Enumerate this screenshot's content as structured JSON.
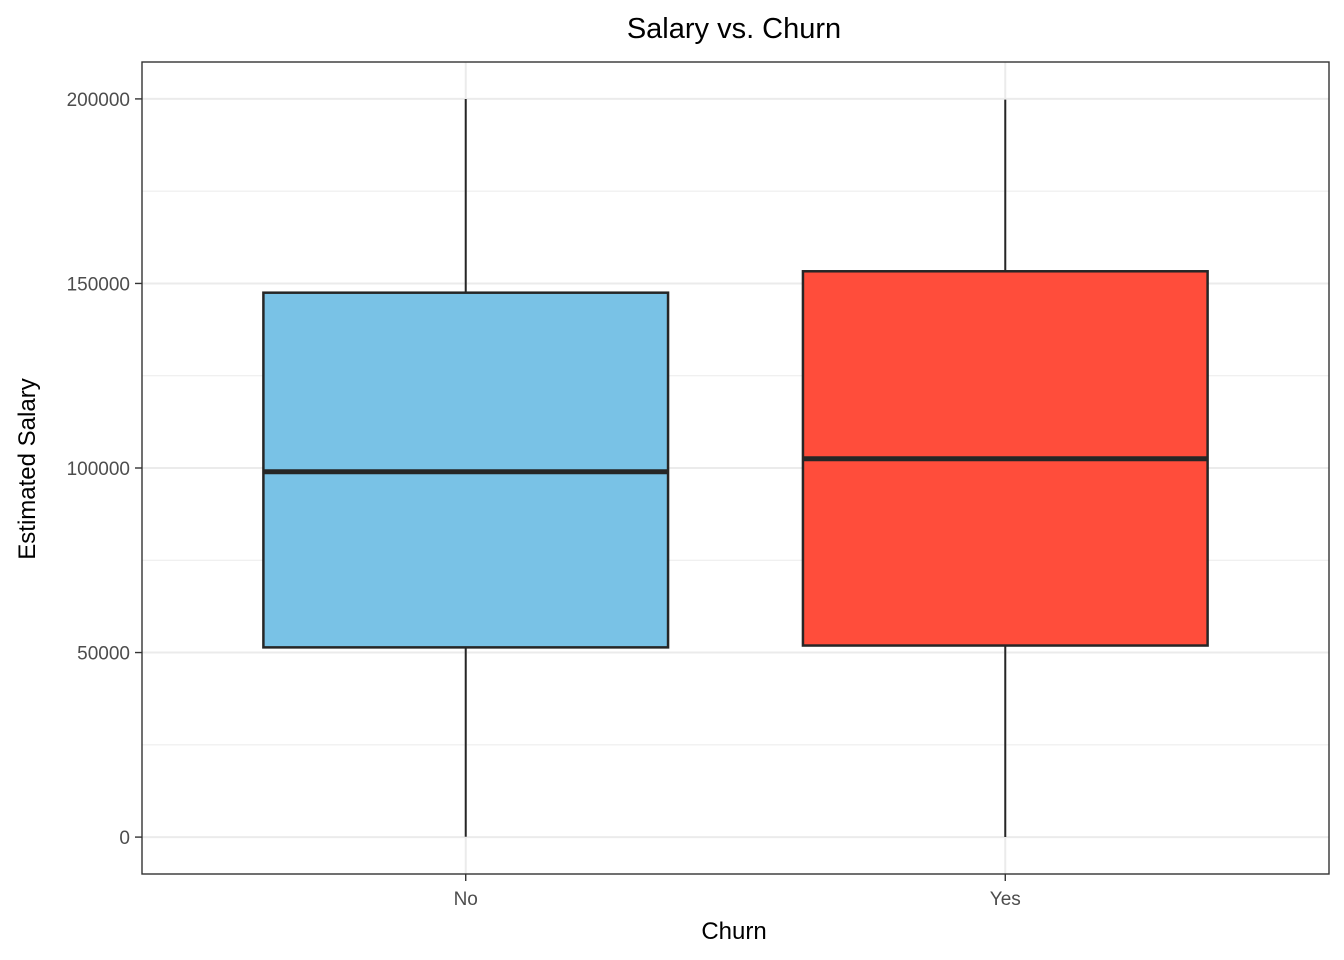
{
  "chart_data": {
    "type": "boxplot",
    "title": "Salary vs. Churn",
    "xlabel": "Churn",
    "ylabel": "Estimated Salary",
    "categories": [
      "No",
      "Yes"
    ],
    "boxes": [
      {
        "category": "No",
        "min": 90,
        "q1": 51400,
        "median": 99000,
        "q3": 147500,
        "max": 199990,
        "fill": "#79C2E6"
      },
      {
        "category": "Yes",
        "min": 11.6,
        "q1": 51900,
        "median": 102500,
        "q3": 153300,
        "max": 199800,
        "fill": "#FF4D3B"
      }
    ],
    "ylim": [
      -10000,
      210000
    ],
    "yticks": [
      0,
      50000,
      100000,
      150000,
      200000
    ],
    "ytick_labels": [
      "0",
      "50000",
      "100000",
      "150000",
      "200000"
    ],
    "grid": true,
    "legend": "none",
    "colors": {
      "No": "#79C2E6",
      "Yes": "#FF4D3B",
      "outline": "#262626",
      "grid": "#EBEBEB"
    }
  }
}
